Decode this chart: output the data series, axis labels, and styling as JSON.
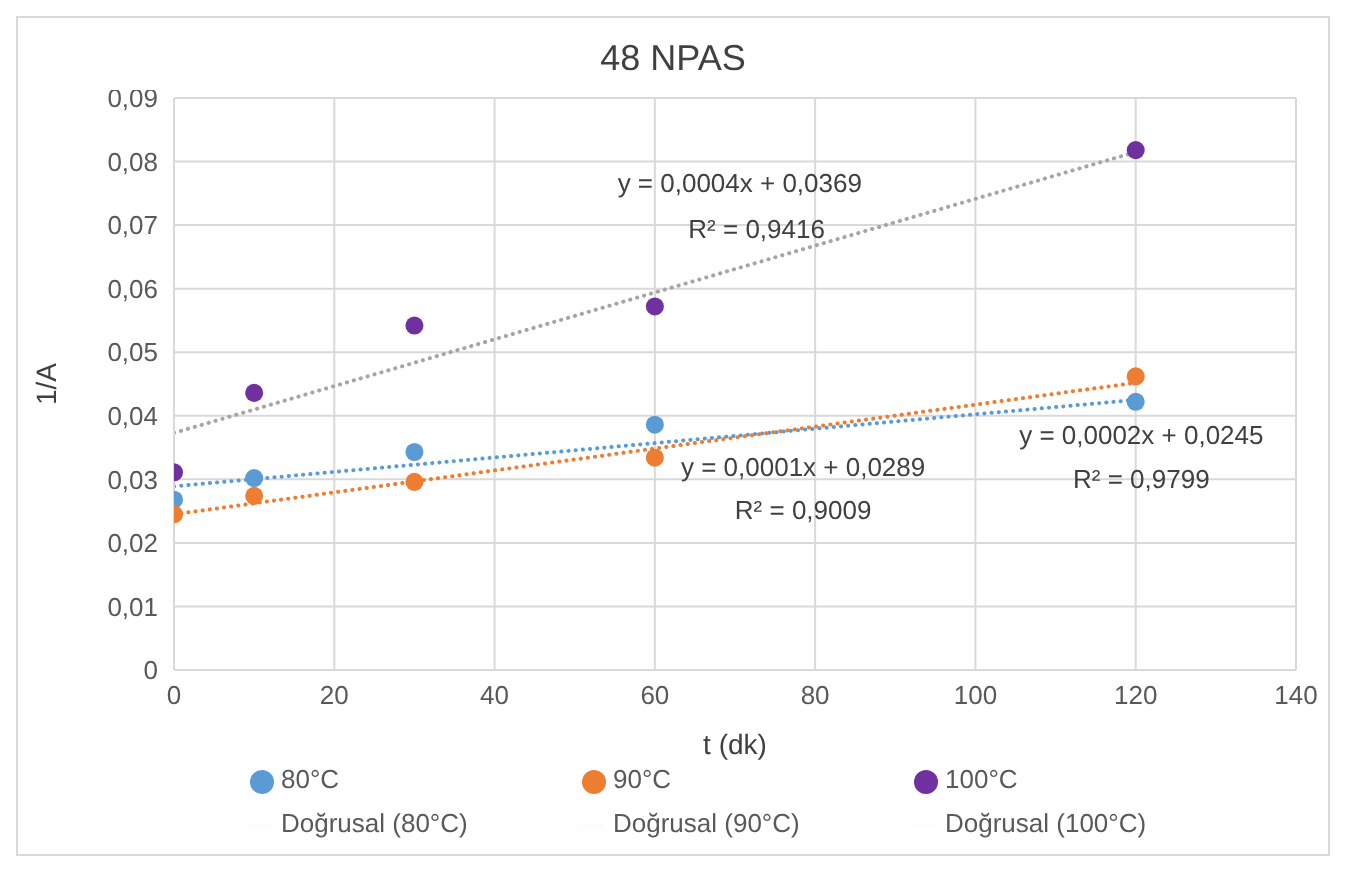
{
  "chart_data": {
    "type": "scatter",
    "title": "48 NPAS",
    "xlabel": "t (dk)",
    "ylabel": "1/A",
    "xlim": [
      0,
      140
    ],
    "xticks": [
      0,
      20,
      40,
      60,
      80,
      100,
      120,
      140
    ],
    "ylim": [
      0,
      0.09
    ],
    "yticks": [
      0,
      {
        "value": 0.01,
        "label": "0,01"
      },
      {
        "value": 0.02,
        "label": "0,02"
      },
      {
        "value": 0.03,
        "label": "0,03"
      },
      {
        "value": 0.04,
        "label": "0,04"
      },
      {
        "value": 0.05,
        "label": "0,05"
      },
      {
        "value": 0.06,
        "label": "0,06"
      },
      {
        "value": 0.07,
        "label": "0,07"
      },
      {
        "value": 0.08,
        "label": "0,08"
      },
      {
        "value": 0.09,
        "label": "0,09"
      }
    ],
    "grid": true,
    "legend": "bottom",
    "marker": "circle",
    "series": [
      {
        "name": "80°C",
        "color": "#5b9bd5",
        "x": [
          0,
          10,
          30,
          60,
          120
        ],
        "values": [
          0.0268,
          0.0302,
          0.0343,
          0.0386,
          0.0422
        ]
      },
      {
        "name": "90°C",
        "color": "#ed7d31",
        "x": [
          0,
          10,
          30,
          60,
          120
        ],
        "values": [
          0.0245,
          0.0274,
          0.0296,
          0.0334,
          0.0462
        ]
      },
      {
        "name": "100°C",
        "color": "#7030a0",
        "x": [
          0,
          10,
          30,
          60,
          120
        ],
        "values": [
          0.0311,
          0.0436,
          0.0542,
          0.0572,
          0.0818
        ]
      },
      {
        "name": "Doğrusal (80°C)",
        "type": "line",
        "line_style": "dotted",
        "marker": "none",
        "color": "#5b9bd5",
        "x": [
          0,
          120
        ],
        "values": [
          0.0289,
          0.0425
        ]
      },
      {
        "name": "Doğrusal (90°C)",
        "type": "line",
        "line_style": "dotted",
        "marker": "none",
        "color": "#ed7d31",
        "x": [
          0,
          120
        ],
        "values": [
          0.0245,
          0.0452
        ]
      },
      {
        "name": "Doğrusal (100°C)",
        "type": "line",
        "line_style": "dotted",
        "marker": "none",
        "color": "#a5a5a5",
        "x": [
          0,
          120
        ],
        "values": [
          0.0373,
          0.0815
        ]
      }
    ],
    "annotations": [
      "y = 0,0004x + 0,0369",
      "R² = 0,9416",
      "y = 0,0001x + 0,0289",
      "R² = 0,9009",
      "y = 0,0002x + 0,0245",
      "R² = 0,9799"
    ]
  }
}
